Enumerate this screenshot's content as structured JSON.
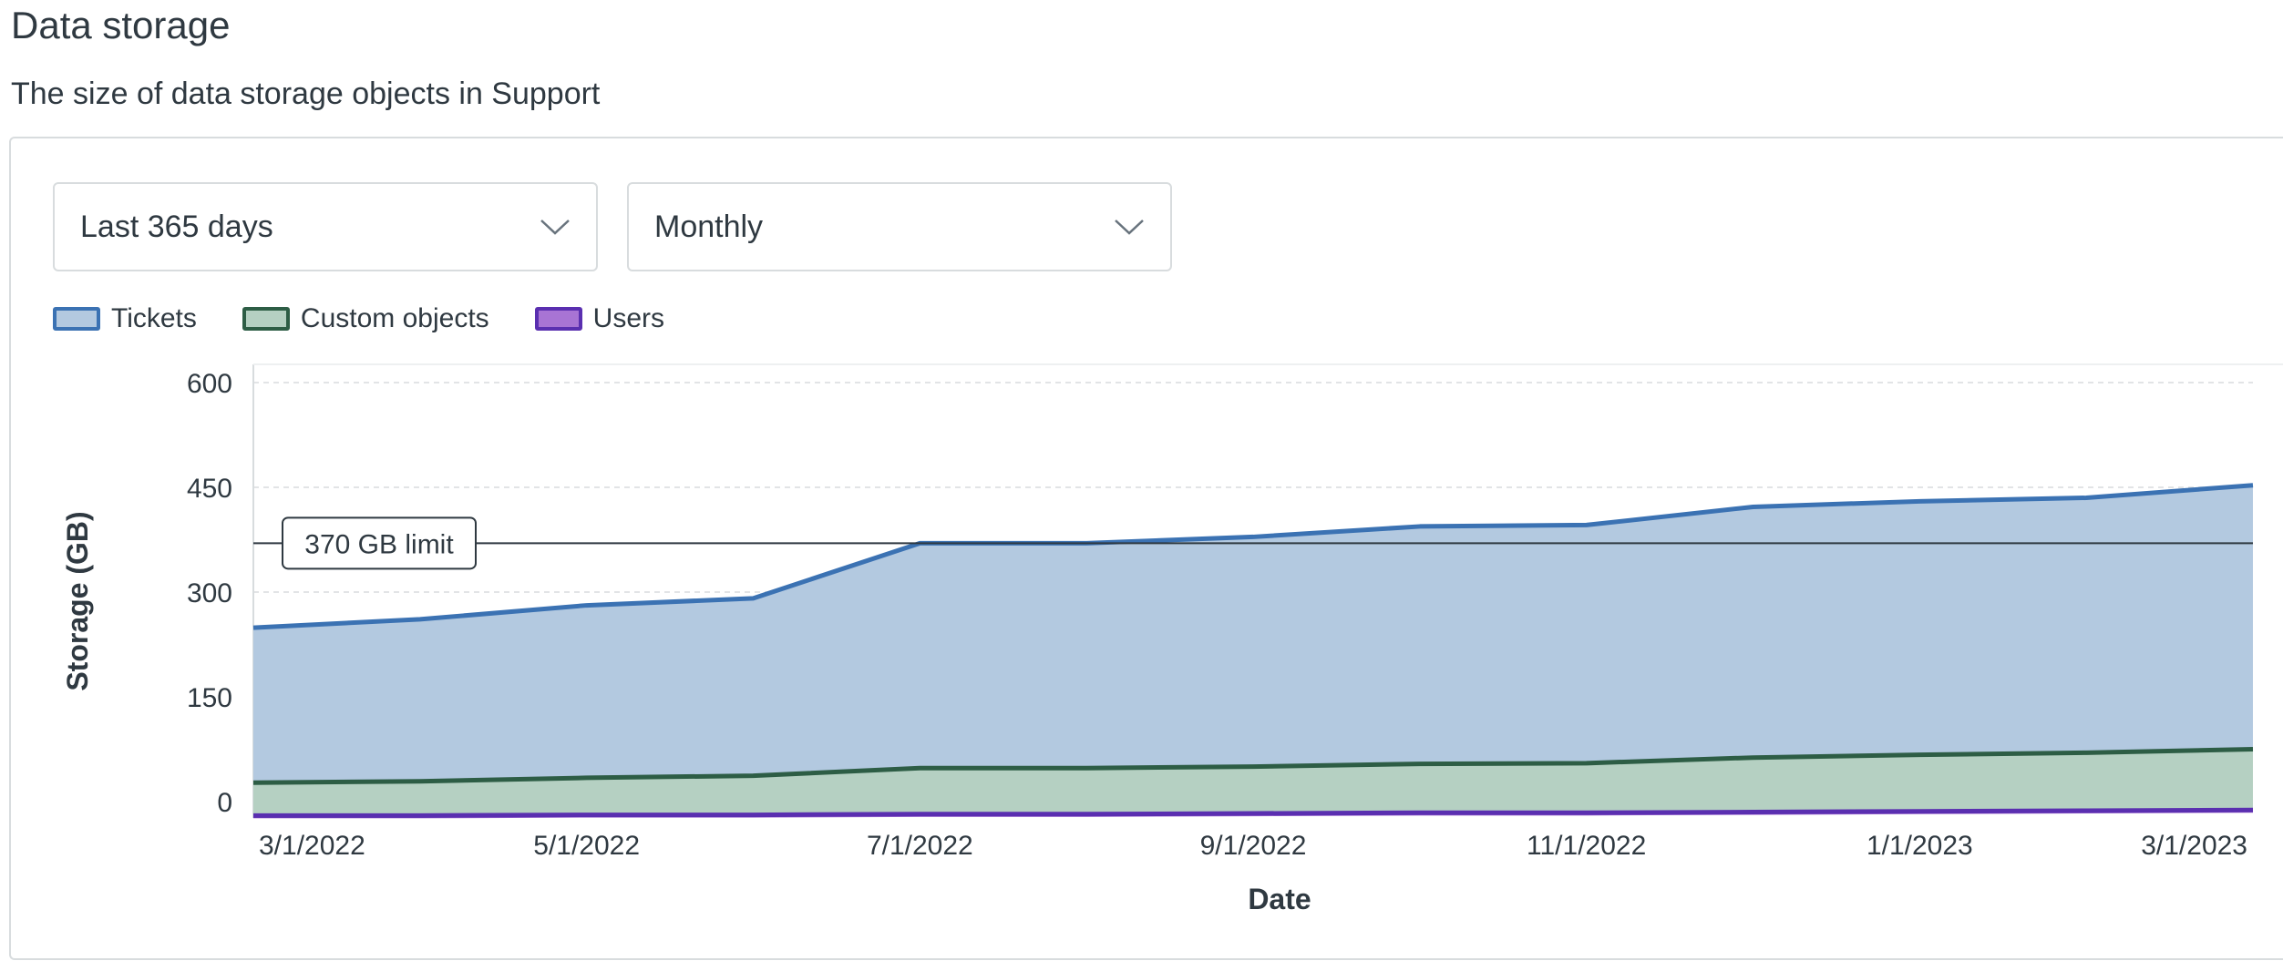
{
  "header": {
    "title": "Data storage",
    "subtitle": "The size of data storage objects in Support"
  },
  "filters": {
    "range": {
      "selected": "Last 365 days"
    },
    "interval": {
      "selected": "Monthly"
    }
  },
  "icons": {
    "dropdown": "chevron-down-icon"
  },
  "colors": {
    "tickets_fill": "#b3c9e0",
    "tickets_line": "#3b72b3",
    "custom_fill": "#b5d0c2",
    "custom_line": "#2d5d45",
    "users_fill": "#a874d4",
    "users_line": "#5a2fb0",
    "grid": "#d8dcde",
    "limit": "#2f3941"
  },
  "chart_data": {
    "type": "area",
    "stacked": true,
    "xlabel": "Date",
    "ylabel": "Storage (GB)",
    "ylim": [
      0,
      600
    ],
    "y_ticks": [
      0,
      150,
      300,
      450,
      600
    ],
    "x": [
      "3/1/2022",
      "4/1/2022",
      "5/1/2022",
      "6/1/2022",
      "7/1/2022",
      "8/1/2022",
      "9/1/2022",
      "10/1/2022",
      "11/1/2022",
      "12/1/2022",
      "1/1/2023",
      "2/1/2023",
      "3/1/2023"
    ],
    "x_tick_labels": [
      "3/1/2022",
      "5/1/2022",
      "7/1/2022",
      "9/1/2022",
      "11/1/2022",
      "1/1/2023",
      "3/1/2023"
    ],
    "series": [
      {
        "name": "Users",
        "values": [
          -20,
          -20,
          -19,
          -19,
          -18,
          -18,
          -17,
          -16,
          -16,
          -15,
          -14,
          -13,
          -12
        ]
      },
      {
        "name": "Custom objects",
        "values": [
          47,
          49,
          53,
          56,
          66,
          66,
          67,
          70,
          71,
          78,
          81,
          83,
          87
        ]
      },
      {
        "name": "Tickets",
        "values": [
          222,
          232,
          247,
          254,
          322,
          322,
          329,
          340,
          341,
          359,
          363,
          365,
          378
        ]
      }
    ],
    "totals": [
      249,
      261,
      281,
      291,
      370,
      370,
      379,
      394,
      396,
      422,
      430,
      435,
      453
    ],
    "reference_line": {
      "value": 370,
      "label": "370 GB limit"
    },
    "grid": "horizontal-dashed",
    "legend": "top-left"
  }
}
